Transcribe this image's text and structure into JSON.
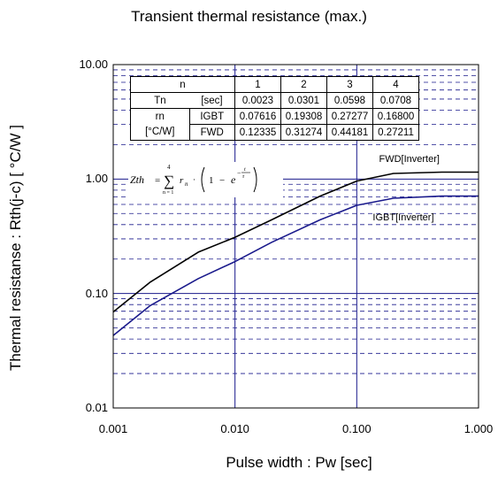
{
  "chart_data": {
    "type": "line",
    "title": "Transient thermal resistance (max.)",
    "xlabel": "Pulse width : Pw [sec]",
    "ylabel": "Thermal resistanse : Rth(j-c) [ °C/W ]",
    "x_scale": "log",
    "y_scale": "log",
    "xlim": [
      0.001,
      1.0
    ],
    "ylim": [
      0.01,
      10.0
    ],
    "x_ticks": [
      "0.001",
      "0.010",
      "0.100",
      "1.000"
    ],
    "y_ticks": [
      "10.00",
      "1.00",
      "0.10",
      "0.01"
    ],
    "grid": true,
    "series": [
      {
        "name": "FWD[Inverter]",
        "color": "#000000",
        "x": [
          0.001,
          0.002,
          0.005,
          0.01,
          0.02,
          0.05,
          0.1,
          0.2,
          0.5,
          1.0
        ],
        "y": [
          0.069,
          0.125,
          0.23,
          0.31,
          0.44,
          0.71,
          0.96,
          1.12,
          1.15,
          1.15
        ]
      },
      {
        "name": "IGBT[Inverter]",
        "color": "#1a1a8c",
        "x": [
          0.001,
          0.002,
          0.005,
          0.01,
          0.02,
          0.05,
          0.1,
          0.2,
          0.5,
          1.0
        ],
        "y": [
          0.043,
          0.078,
          0.135,
          0.19,
          0.28,
          0.44,
          0.59,
          0.68,
          0.71,
          0.71
        ]
      }
    ],
    "annotations": [
      "FWD[Inverter]",
      "IGBT[Inverter]"
    ]
  },
  "table": {
    "header": [
      "n",
      "1",
      "2",
      "3",
      "4"
    ],
    "tau_label": "Tn",
    "tau_unit": "[sec]",
    "tau": [
      "0.0023",
      "0.0301",
      "0.0598",
      "0.0708"
    ],
    "r_label": "rn",
    "r_unit": "[°C/W]",
    "igbt_label": "IGBT",
    "igbt": [
      "0.07616",
      "0.19308",
      "0.27277",
      "0.16800"
    ],
    "fwd_label": "FWD",
    "fwd": [
      "0.12335",
      "0.31274",
      "0.44181",
      "0.27211"
    ]
  },
  "formula": {
    "lhs": "Zth",
    "eq": "=",
    "sum_top": "4",
    "sum_bottom": "n = 1",
    "term": "r",
    "sub": "n",
    "one": "1",
    "minus": "−",
    "base": "e",
    "exp_num": "t",
    "exp_den": "τ"
  }
}
